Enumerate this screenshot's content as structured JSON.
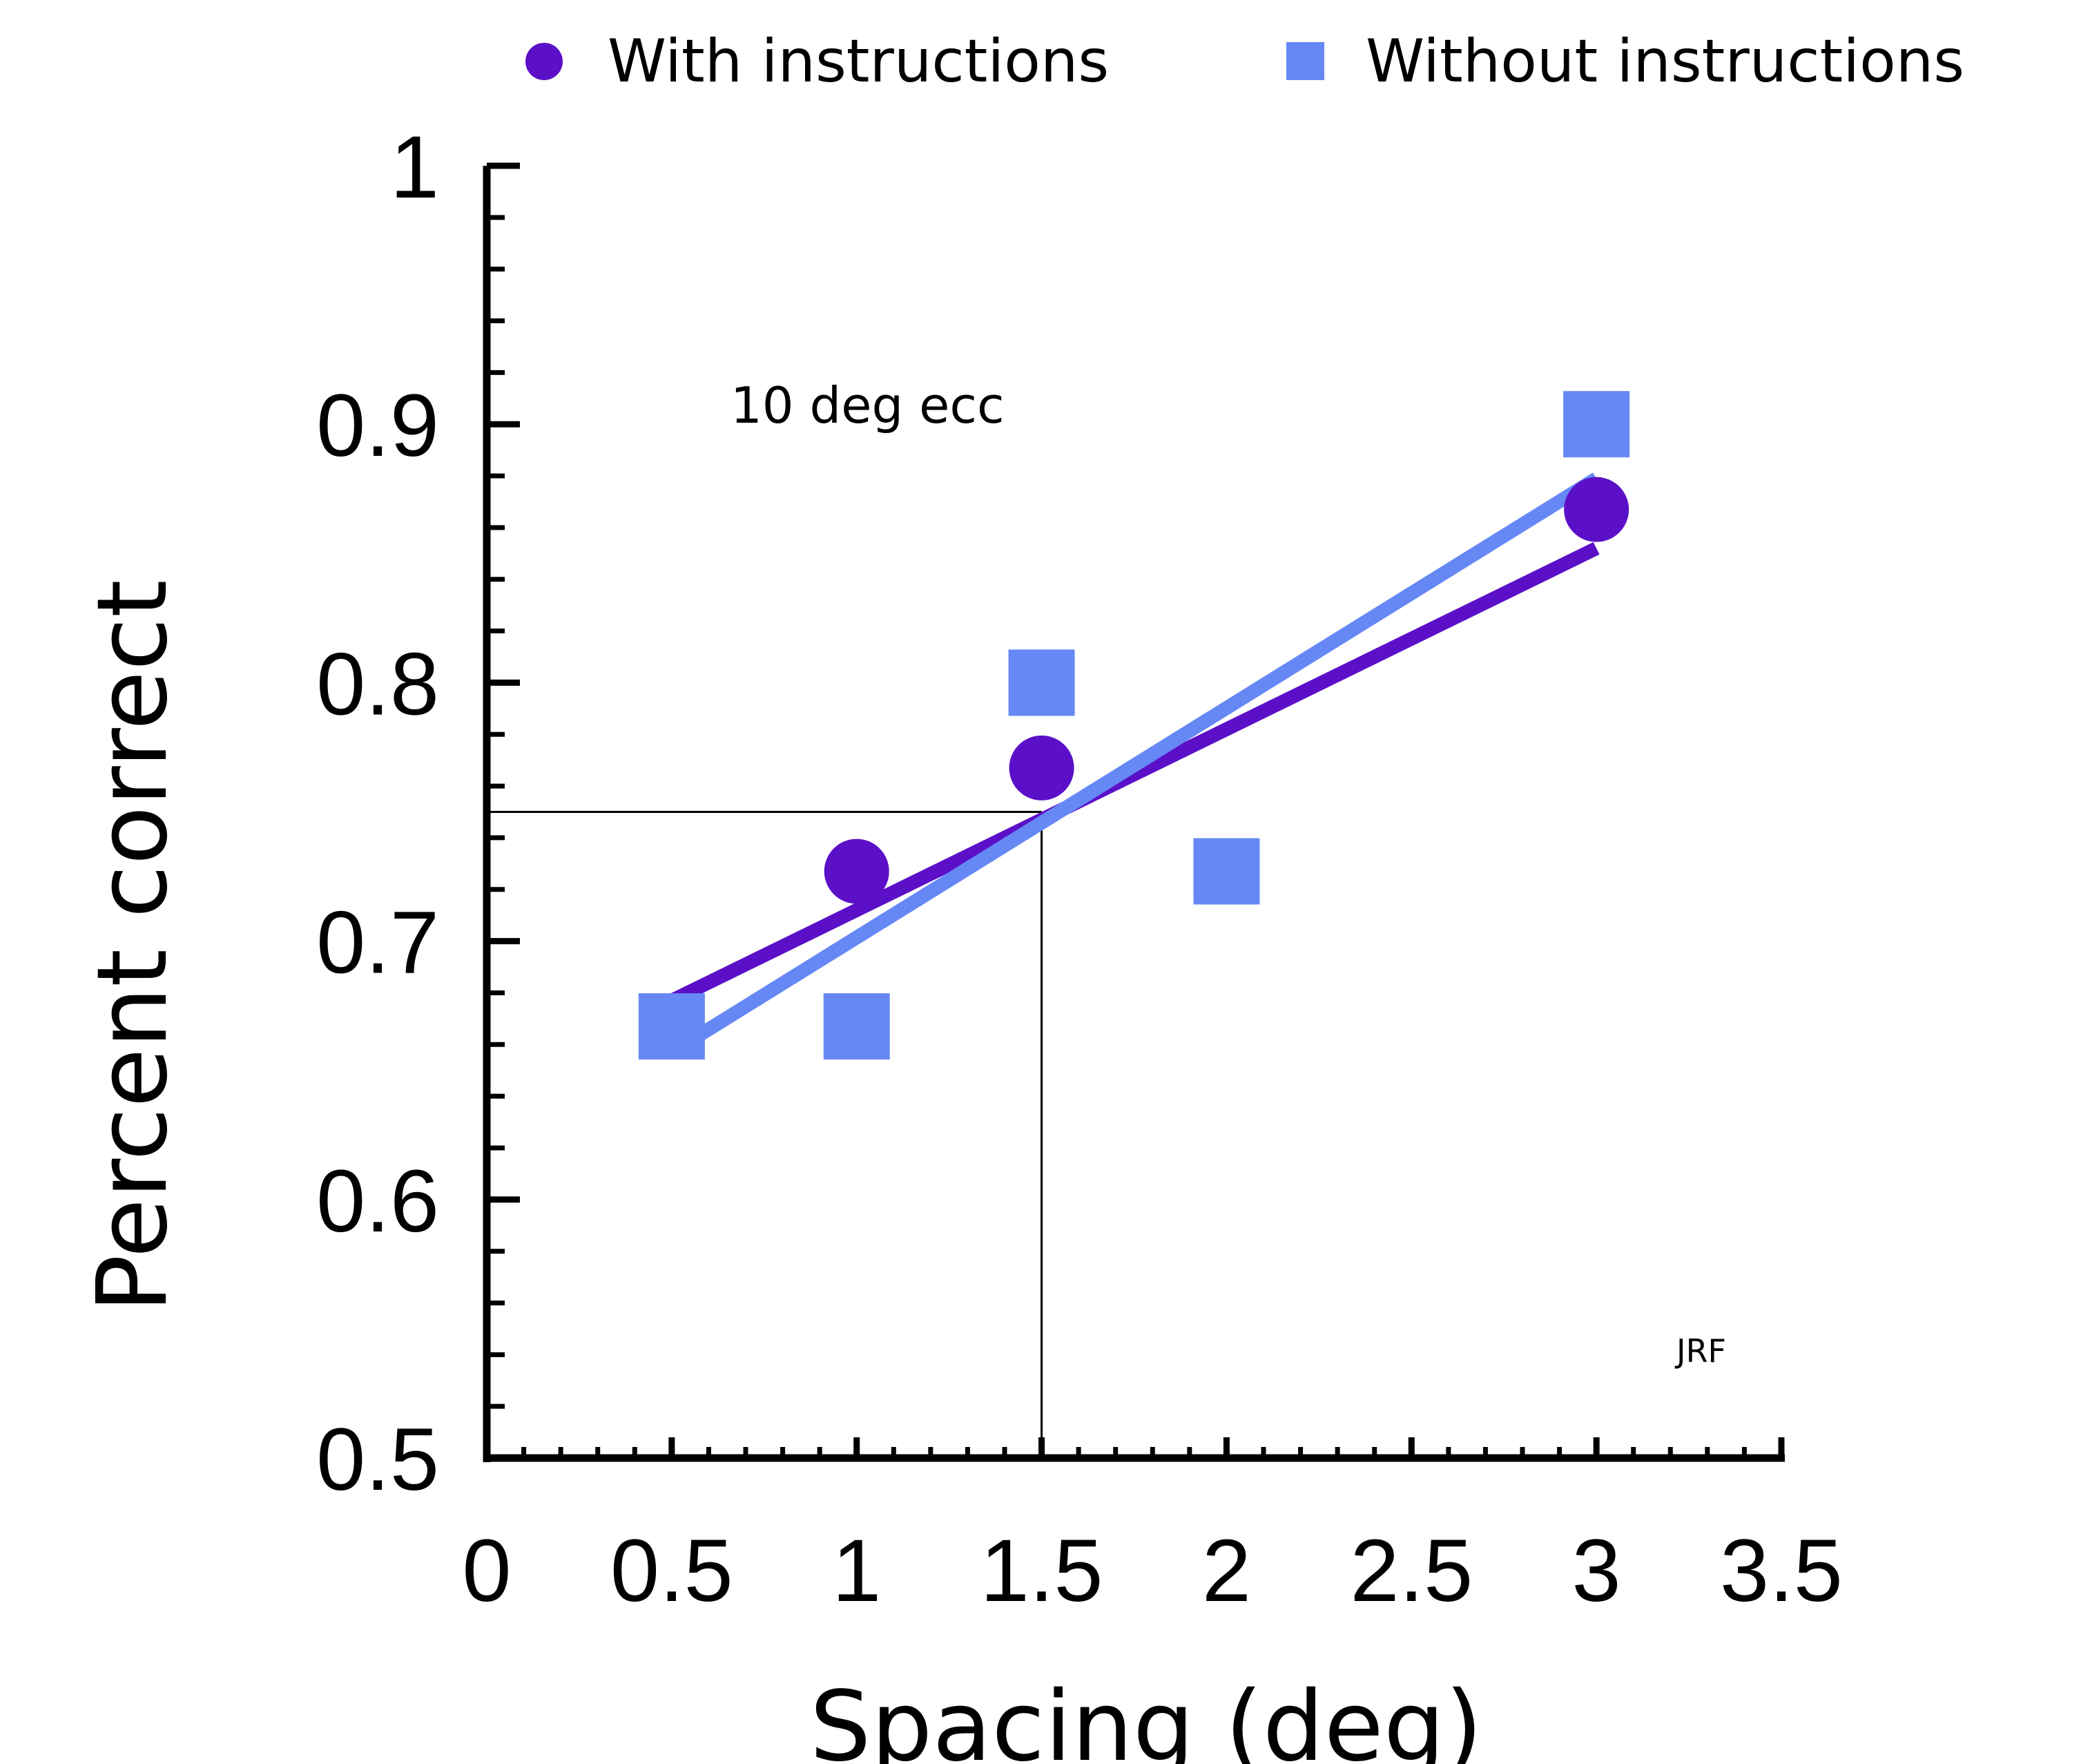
{
  "chart_data": {
    "type": "scatter",
    "xlabel": "Spacing (deg)",
    "ylabel": "Percent correct",
    "xlim": [
      0,
      3.5
    ],
    "ylim": [
      0.5,
      1
    ],
    "x_ticks": [
      "0",
      "0.5",
      "1",
      "1.5",
      "2",
      "2.5",
      "3",
      "3.5"
    ],
    "x_tick_values": [
      0,
      0.5,
      1,
      1.5,
      2,
      2.5,
      3,
      3.5
    ],
    "y_ticks": [
      "0.5",
      "0.6",
      "0.7",
      "0.8",
      "0.9",
      "1"
    ],
    "y_tick_values": [
      0.5,
      0.6,
      0.7,
      0.8,
      0.9,
      1
    ],
    "grid": false,
    "legend_position": "top",
    "annotations": [
      "10 deg ecc",
      "JRF"
    ],
    "reference_lines": {
      "x": 1.5,
      "y": 0.75
    },
    "series": [
      {
        "name": "With instructions",
        "marker": "circle",
        "color": "#5b10c8",
        "x": [
          1,
          1.5,
          3
        ],
        "y": [
          0.727,
          0.767,
          0.867
        ],
        "fit": {
          "x": [
            0.5,
            3
          ],
          "y": [
            0.677,
            0.852
          ]
        }
      },
      {
        "name": "Without instructions",
        "marker": "square",
        "color": "#6688f5",
        "x": [
          0.5,
          1,
          1.5,
          2,
          3
        ],
        "y": [
          0.667,
          0.667,
          0.8,
          0.727,
          0.9
        ],
        "fit": {
          "x": [
            0.5,
            3
          ],
          "y": [
            0.657,
            0.879
          ]
        }
      }
    ]
  }
}
